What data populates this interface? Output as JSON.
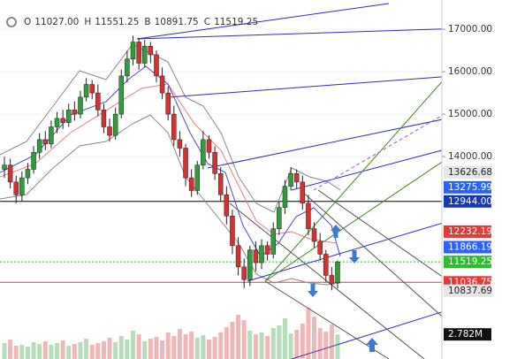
{
  "chart_data": {
    "type": "candlestick",
    "header": [
      {
        "key": "O",
        "value": "11027.00"
      },
      {
        "key": "H",
        "value": "11551.25"
      },
      {
        "key": "B",
        "value": "10891.75"
      },
      {
        "key": "C",
        "value": "11519.25"
      }
    ],
    "open": [
      13700,
      13800,
      13400,
      13100,
      13500,
      13700,
      14100,
      14400,
      14300,
      14700,
      14900,
      14800,
      15100,
      15000,
      15400,
      15700,
      15500,
      15100,
      14700,
      14500,
      15000,
      15900,
      16300,
      16700,
      16200,
      16600,
      16400,
      15900,
      15500,
      15000,
      14400,
      14200,
      13500,
      13200,
      13800,
      14400,
      14100,
      13600,
      13100,
      12600,
      11900,
      11400,
      11100,
      11800,
      11500,
      11900,
      11700,
      12300,
      12800,
      13300,
      13600,
      13400,
      12900,
      12300,
      12000,
      11700,
      11200,
      11027
    ],
    "high": [
      14000,
      13950,
      13550,
      13650,
      13850,
      14250,
      14550,
      14600,
      14850,
      15050,
      15100,
      15250,
      15300,
      15550,
      15850,
      15800,
      15700,
      15250,
      14900,
      15150,
      16050,
      16500,
      16850,
      16800,
      16750,
      16700,
      16500,
      16100,
      15650,
      15200,
      14600,
      14300,
      13700,
      13900,
      14600,
      14500,
      14250,
      13750,
      13300,
      12750,
      12100,
      11600,
      11900,
      12000,
      12050,
      12000,
      12450,
      12950,
      13450,
      13750,
      13700,
      13550,
      13100,
      12450,
      12200,
      11800,
      11400,
      11551.25
    ],
    "low": [
      13500,
      13250,
      12900,
      12950,
      13350,
      13600,
      13950,
      14150,
      14200,
      14550,
      14650,
      14700,
      14850,
      14900,
      15300,
      15350,
      14950,
      14550,
      14350,
      14400,
      14900,
      15750,
      16150,
      16050,
      16100,
      16200,
      15750,
      15350,
      14850,
      14250,
      14000,
      13300,
      13050,
      13100,
      13700,
      13950,
      13450,
      12950,
      12400,
      11700,
      11200,
      10900,
      10950,
      11300,
      11350,
      11550,
      11600,
      12150,
      12650,
      13200,
      13250,
      12750,
      12150,
      11850,
      11550,
      11050,
      10850,
      10891.75
    ],
    "close": [
      13800,
      13400,
      13100,
      13500,
      13700,
      14100,
      14400,
      14300,
      14700,
      14900,
      14800,
      15100,
      15000,
      15400,
      15700,
      15500,
      15100,
      14700,
      14500,
      15000,
      15900,
      16300,
      16700,
      16200,
      16600,
      16400,
      15900,
      15500,
      15000,
      14400,
      14200,
      13500,
      13200,
      13800,
      14400,
      14100,
      13600,
      13100,
      12600,
      11900,
      11400,
      11100,
      11800,
      11500,
      11900,
      11700,
      12300,
      12800,
      13300,
      13600,
      13400,
      12900,
      12300,
      12000,
      11700,
      11200,
      11000,
      11519.25
    ],
    "volume": [
      1.8,
      2.2,
      1.5,
      1.6,
      1.4,
      1.9,
      1.7,
      2.0,
      1.6,
      1.8,
      2.1,
      1.5,
      1.7,
      1.9,
      2.3,
      1.6,
      1.8,
      2.0,
      2.4,
      1.9,
      2.6,
      2.2,
      3.2,
      2.8,
      2.0,
      2.3,
      2.5,
      2.1,
      3.0,
      2.6,
      3.4,
      2.8,
      3.1,
      2.4,
      2.7,
      2.2,
      2.5,
      3.0,
      3.6,
      4.2,
      5.0,
      4.4,
      3.2,
      2.8,
      3.0,
      2.6,
      3.5,
      3.8,
      4.6,
      2.9,
      3.3,
      4.0,
      5.8,
      4.8,
      3.5,
      3.1,
      3.9,
      2.782
    ],
    "up_color": "#2f9e3a",
    "down_color": "#d63030",
    "ylim": [
      9230,
      17690
    ],
    "yticks": [
      {
        "value": 17000,
        "label": "17000.00"
      },
      {
        "value": 16000,
        "label": "16000.00"
      },
      {
        "value": 15000,
        "label": "15000.00"
      },
      {
        "value": 14000,
        "label": "14000.00"
      }
    ],
    "grid": true,
    "volume_ylim": [
      0,
      6
    ],
    "price_markers": [
      {
        "value": 13626.68,
        "label": "13626.68",
        "color": "#e6e6e6",
        "text_color": "#222"
      },
      {
        "value": 13275.99,
        "label": "13275.99",
        "color": "#2962ff",
        "text_color": "#fff"
      },
      {
        "value": 12944,
        "label": "12944.00",
        "color": "#1438b8",
        "text_color": "#fff",
        "line": "solid",
        "line_color": "#000"
      },
      {
        "value": 12232.19,
        "label": "12232.19",
        "color": "#e53935",
        "text_color": "#fff"
      },
      {
        "value": 11866.19,
        "label": "11866.19",
        "color": "#2962ff",
        "text_color": "#fff"
      },
      {
        "value": 11519.25,
        "label": "11519.25",
        "color": "#2bbf2b",
        "text_color": "#fff",
        "line": "dotted",
        "line_color": "#2bbf2b"
      },
      {
        "value": 11036.75,
        "label": "11036.75",
        "color": "#e53935",
        "text_color": "#fff",
        "line": "solid",
        "line_color": "#e53935"
      },
      {
        "value": 10837.69,
        "label": "10837.69",
        "color": "#e6e6e6",
        "text_color": "#222"
      }
    ],
    "volume_marker": {
      "value": 2.782,
      "label": "2.782M",
      "color": "#111",
      "text_color": "#fff"
    }
  }
}
